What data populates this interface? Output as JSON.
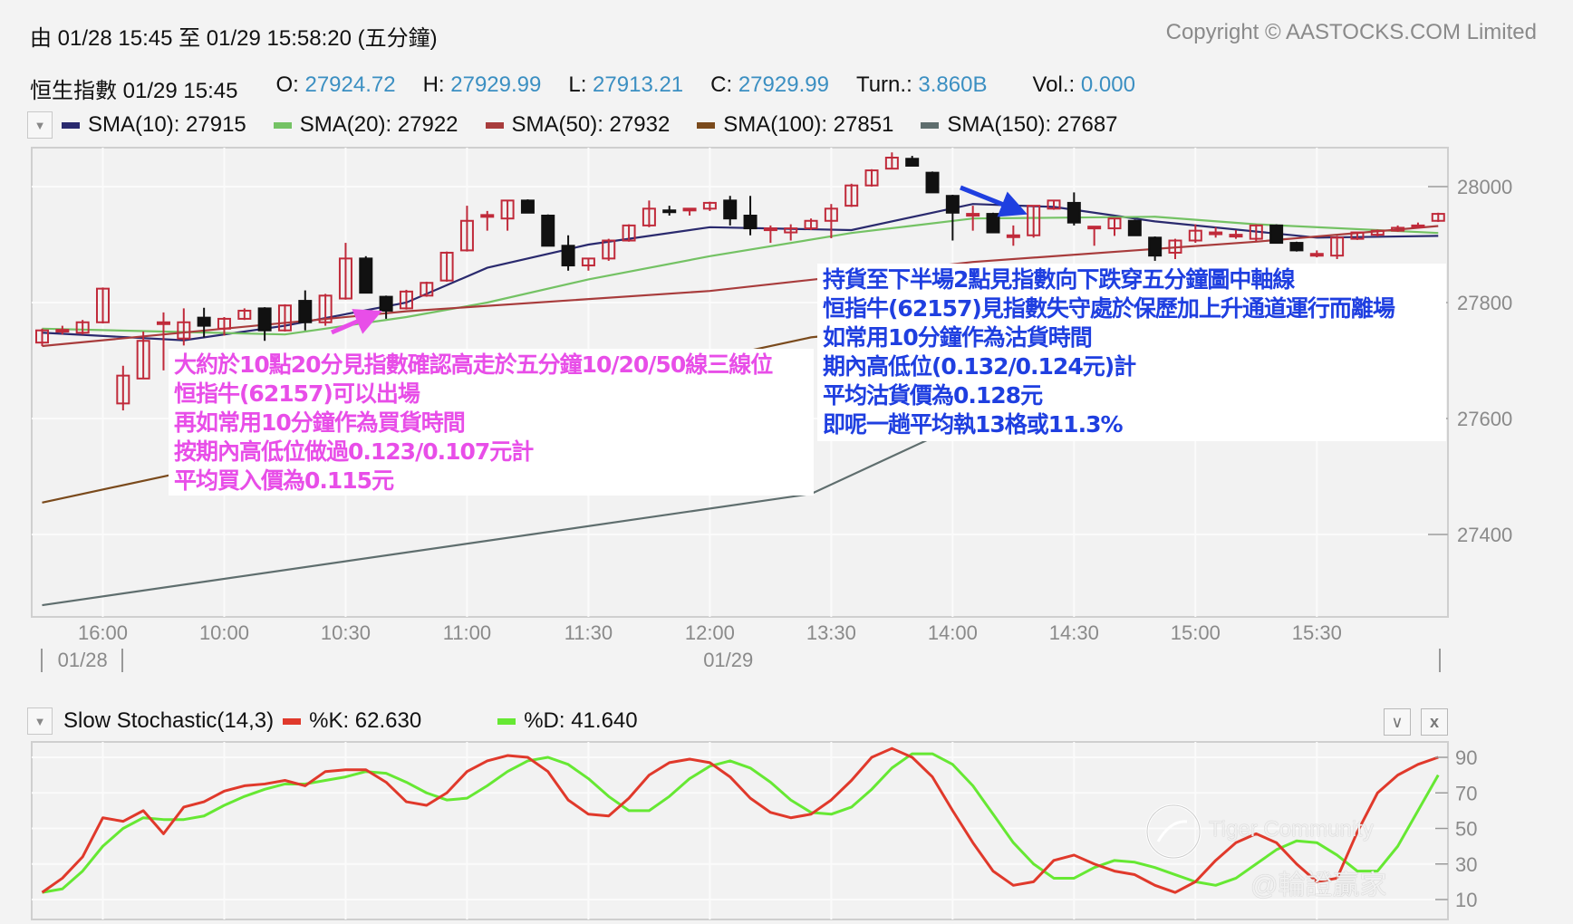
{
  "header": {
    "range_text": "由  01/28 15:45 至  01/29 15:58:20 (五分鐘)",
    "copyright": "Copyright © AASTOCKS.COM Limited"
  },
  "quote": {
    "name_time": "恒生指數 01/29 15:45",
    "fields": [
      {
        "label": "O:",
        "value": "27924.72"
      },
      {
        "label": "H:",
        "value": "27929.99"
      },
      {
        "label": "L:",
        "value": "27913.21"
      },
      {
        "label": "C:",
        "value": "27929.99"
      },
      {
        "label": "Turn.:",
        "value": "3.860B"
      },
      {
        "label": "Vol.:",
        "value": "0.000"
      }
    ],
    "value_color": "#3b8fc2"
  },
  "legend": {
    "dropdown_icon": "triangle-down-icon",
    "items": [
      {
        "label": "SMA(10): 27915",
        "color": "#2a2a6e"
      },
      {
        "label": "SMA(20): 27922",
        "color": "#74c264"
      },
      {
        "label": "SMA(50): 27932",
        "color": "#a83c3c"
      },
      {
        "label": "SMA(100): 27851",
        "color": "#7a4a1c"
      },
      {
        "label": "SMA(150): 27687",
        "color": "#5f6e6e"
      }
    ]
  },
  "annotations": {
    "buy": {
      "color": "#e84ee8",
      "lines": [
        "大約於10點20分見指數確認高走於五分鐘10/20/50線三線位",
        "恒指牛(62157)可以出場",
        "再如常用10分鐘作為買貨時間",
        "按期內高低位做過0.123/0.107元計",
        "平均買入價為0.115元"
      ]
    },
    "sell": {
      "color": "#1f3fe0",
      "lines": [
        "持貨至下半場2點見指數向下跌穿五分鐘圖中軸線",
        "恒指牛(62157)見指數失守處於保歷加上升通道運行而離場",
        "如常用10分鐘作為沽貨時間",
        "期內高低位(0.132/0.124元)計",
        "平均沽貨價為0.128元",
        "即呢一趟平均執13格或11.3%"
      ]
    }
  },
  "stoch_header": {
    "title": "Slow Stochastic(14,3)",
    "k_label": "%K: 62.630",
    "d_label": "%D: 41.640",
    "k_color": "#e0392b",
    "d_color": "#66e833",
    "collapse_icon": "chevron-down-icon",
    "close_icon": "close-icon",
    "close_label": "x"
  },
  "watermark": {
    "brand": "Tiger Community",
    "handle": "@輪證贏家"
  },
  "chart_data": [
    {
      "type": "candlestick",
      "title": "",
      "ylim": [
        27250,
        28090
      ],
      "y_ticks": [
        "28000",
        "27800",
        "27600",
        "27400"
      ],
      "y_tick_values": [
        28000,
        27800,
        27600,
        27400
      ],
      "x_ticks": [
        {
          "label": "16:00",
          "time": "01/28 16:00"
        },
        {
          "label": "10:00",
          "time": "01/29 10:00"
        },
        {
          "label": "10:30",
          "time": "01/29 10:30"
        },
        {
          "label": "11:00",
          "time": "01/29 11:00"
        },
        {
          "label": "11:30",
          "time": "01/29 11:30"
        },
        {
          "label": "12:00",
          "time": "01/29 12:00"
        },
        {
          "label": "13:30",
          "time": "01/29 13:30"
        },
        {
          "label": "14:00",
          "time": "01/29 14:00"
        },
        {
          "label": "14:30",
          "time": "01/29 14:30"
        },
        {
          "label": "15:00",
          "time": "01/29 15:00"
        },
        {
          "label": "15:30",
          "time": "01/29 15:30"
        }
      ],
      "date_labels": [
        {
          "label": "01/28",
          "time": "01/28 15:55"
        },
        {
          "label": "01/29",
          "time": "01/29 13:05"
        }
      ],
      "grid": true,
      "up_color": "#c02a3a",
      "down_color": "#111111",
      "candles_ohlc": [
        [
          "01/28 15:45",
          27731,
          27755,
          27725,
          27752
        ],
        [
          "01/28 15:50",
          27752,
          27760,
          27745,
          27753
        ],
        [
          "01/28 15:55",
          27748,
          27770,
          27745,
          27766
        ],
        [
          "01/28 16:00",
          27766,
          27826,
          27764,
          27824
        ],
        [
          "01/29 09:35",
          27626,
          27691,
          27614,
          27674
        ],
        [
          "01/29 09:40",
          27669,
          27750,
          27669,
          27734
        ],
        [
          "01/29 09:45",
          27765,
          27783,
          27683,
          27766
        ],
        [
          "01/29 09:50",
          27738,
          27790,
          27726,
          27766
        ],
        [
          "01/29 09:55",
          27774,
          27791,
          27740,
          27760
        ],
        [
          "01/29 10:00",
          27755,
          27775,
          27743,
          27772
        ],
        [
          "01/29 10:05",
          27772,
          27790,
          27770,
          27786
        ],
        [
          "01/29 10:10",
          27790,
          27792,
          27734,
          27752
        ],
        [
          "01/29 10:15",
          27752,
          27797,
          27750,
          27795
        ],
        [
          "01/29 10:20",
          27803,
          27821,
          27752,
          27766
        ],
        [
          "01/29 10:25",
          27766,
          27815,
          27760,
          27812
        ],
        [
          "01/29 10:30",
          27807,
          27903,
          27805,
          27876
        ],
        [
          "01/29 10:35",
          27876,
          27880,
          27817,
          27817
        ],
        [
          "01/29 10:40",
          27810,
          27812,
          27772,
          27786
        ],
        [
          "01/29 10:45",
          27790,
          27822,
          27788,
          27819
        ],
        [
          "01/29 10:50",
          27812,
          27836,
          27810,
          27834
        ],
        [
          "01/29 10:55",
          27838,
          27888,
          27836,
          27886
        ],
        [
          "01/29 11:00",
          27890,
          27967,
          27888,
          27941
        ],
        [
          "01/29 11:05",
          27950,
          27958,
          27924,
          27951
        ],
        [
          "01/29 11:10",
          27945,
          27976,
          27924,
          27976
        ],
        [
          "01/29 11:15",
          27976,
          27978,
          27955,
          27955
        ],
        [
          "01/29 11:20",
          27950,
          27952,
          27898,
          27898
        ],
        [
          "01/29 11:25",
          27898,
          27916,
          27855,
          27864
        ],
        [
          "01/29 11:30",
          27864,
          27876,
          27855,
          27876
        ],
        [
          "01/29 11:35",
          27876,
          27910,
          27872,
          27907
        ],
        [
          "01/29 11:40",
          27907,
          27935,
          27905,
          27933
        ],
        [
          "01/29 11:45",
          27933,
          27976,
          27930,
          27962
        ],
        [
          "01/29 11:50",
          27959,
          27967,
          27950,
          27958
        ],
        [
          "01/29 11:55",
          27959,
          27962,
          27950,
          27962
        ],
        [
          "01/29 12:00",
          27962,
          27974,
          27958,
          27972
        ],
        [
          "01/29 13:05",
          27976,
          27984,
          27933,
          27945
        ],
        [
          "01/29 13:10",
          27950,
          27984,
          27916,
          27928
        ],
        [
          "01/29 13:15",
          27928,
          27933,
          27903,
          27928
        ],
        [
          "01/29 13:20",
          27921,
          27935,
          27907,
          27928
        ],
        [
          "01/29 13:25",
          27928,
          27945,
          27925,
          27941
        ],
        [
          "01/29 13:30",
          27941,
          27970,
          27911,
          27962
        ],
        [
          "01/29 13:35",
          27967,
          28005,
          27965,
          28002
        ],
        [
          "01/29 13:40",
          28002,
          28030,
          28000,
          28028
        ],
        [
          "01/29 13:45",
          28031,
          28059,
          28030,
          28050
        ],
        [
          "01/29 13:50",
          28048,
          28053,
          28036,
          28036
        ],
        [
          "01/29 13:55",
          28024,
          28026,
          27990,
          27990
        ],
        [
          "01/29 14:00",
          27984,
          27986,
          27907,
          27955
        ],
        [
          "01/29 14:05",
          27953,
          27967,
          27924,
          27953
        ],
        [
          "01/29 14:10",
          27953,
          27955,
          27921,
          27921
        ],
        [
          "01/29 14:15",
          27916,
          27933,
          27898,
          27916
        ],
        [
          "01/29 14:20",
          27916,
          27966,
          27912,
          27967
        ],
        [
          "01/29 14:25",
          27962,
          27976,
          27960,
          27976
        ],
        [
          "01/29 14:30",
          27972,
          27990,
          27933,
          27938
        ],
        [
          "01/29 14:35",
          27928,
          27931,
          27898,
          27931
        ],
        [
          "01/29 14:40",
          27928,
          27945,
          27915,
          27945
        ],
        [
          "01/29 14:45",
          27941,
          27943,
          27916,
          27916
        ],
        [
          "01/29 14:50",
          27912,
          27914,
          27872,
          27881
        ],
        [
          "01/29 14:55",
          27886,
          27910,
          27875,
          27907
        ],
        [
          "01/29 15:00",
          27907,
          27935,
          27903,
          27924
        ],
        [
          "01/29 15:05",
          27921,
          27930,
          27912,
          27921
        ],
        [
          "01/29 15:10",
          27917,
          27925,
          27910,
          27917
        ],
        [
          "01/29 15:15",
          27910,
          27935,
          27905,
          27933
        ],
        [
          "01/29 15:20",
          27933,
          27935,
          27903,
          27903
        ],
        [
          "01/29 15:25",
          27903,
          27905,
          27888,
          27890
        ],
        [
          "01/29 15:30",
          27884,
          27890,
          27878,
          27884
        ],
        [
          "01/29 15:35",
          27881,
          27915,
          27875,
          27912
        ],
        [
          "01/29 15:40",
          27910,
          27922,
          27908,
          27921
        ],
        [
          "01/29 15:45",
          27917,
          27926,
          27914,
          27924
        ],
        [
          "01/29 15:50",
          27924,
          27933,
          27922,
          27929
        ],
        [
          "01/29 15:55",
          27931,
          27938,
          27928,
          27933
        ],
        [
          "01/29 16:00",
          27941,
          27955,
          27939,
          27953
        ]
      ],
      "series": [
        {
          "name": "SMA(10)",
          "color": "#2a2a6e",
          "points": [
            [
              "01/28 15:45",
              27748
            ],
            [
              "01/29 09:50",
              27735
            ],
            [
              "01/29 10:15",
              27760
            ],
            [
              "01/29 10:45",
              27800
            ],
            [
              "01/29 11:05",
              27860
            ],
            [
              "01/29 11:30",
              27900
            ],
            [
              "01/29 12:00",
              27930
            ],
            [
              "01/29 13:35",
              27925
            ],
            [
              "01/29 14:05",
              27970
            ],
            [
              "01/29 14:25",
              27965
            ],
            [
              "01/29 14:50",
              27940
            ],
            [
              "01/29 15:30",
              27912
            ],
            [
              "01/29 16:00",
              27915
            ]
          ]
        },
        {
          "name": "SMA(20)",
          "color": "#74c264",
          "points": [
            [
              "01/28 15:45",
              27755
            ],
            [
              "01/29 10:15",
              27745
            ],
            [
              "01/29 10:45",
              27775
            ],
            [
              "01/29 11:05",
              27800
            ],
            [
              "01/29 11:30",
              27840
            ],
            [
              "01/29 12:00",
              27880
            ],
            [
              "01/29 13:35",
              27920
            ],
            [
              "01/29 14:05",
              27945
            ],
            [
              "01/29 14:50",
              27948
            ],
            [
              "01/29 15:15",
              27935
            ],
            [
              "01/29 16:00",
              27920
            ]
          ]
        },
        {
          "name": "SMA(50)",
          "color": "#a83c3c",
          "points": [
            [
              "01/28 15:45",
              27725
            ],
            [
              "01/29 10:45",
              27785
            ],
            [
              "01/29 12:00",
              27820
            ],
            [
              "01/29 14:05",
              27870
            ],
            [
              "01/29 15:15",
              27905
            ],
            [
              "01/29 16:00",
              27932
            ]
          ]
        },
        {
          "name": "SMA(100)",
          "color": "#7a4a1c",
          "points": [
            [
              "01/28 15:45",
              27455
            ],
            [
              "01/29 13:25",
              27740
            ],
            [
              "01/29 16:00",
              27851
            ]
          ]
        },
        {
          "name": "SMA(150)",
          "color": "#5f6e6e",
          "points": [
            [
              "01/28 15:45",
              27278
            ],
            [
              "01/29 13:25",
              27470
            ],
            [
              "01/29 13:55",
              27567
            ],
            [
              "01/29 16:00",
              27687
            ]
          ]
        }
      ]
    },
    {
      "type": "line",
      "title": "Slow Stochastic(14,3)",
      "ylim": [
        0,
        98
      ],
      "y_ticks": [
        "90",
        "70",
        "50",
        "30",
        "10"
      ],
      "y_tick_values": [
        90,
        70,
        50,
        30,
        10
      ],
      "grid": true,
      "x_aligned_with": "candles_ohlc",
      "series": [
        {
          "name": "%K",
          "color": "#e0392b",
          "values": [
            14,
            22,
            34,
            56,
            54,
            60,
            47,
            62,
            65,
            71,
            74,
            75,
            77,
            74,
            82,
            83,
            83,
            76,
            65,
            63,
            70,
            82,
            88,
            91,
            90,
            82,
            66,
            58,
            57,
            67,
            80,
            87,
            89,
            87,
            79,
            67,
            59,
            56,
            58,
            66,
            77,
            90,
            95,
            90,
            79,
            60,
            42,
            26,
            18,
            20,
            32,
            35,
            30,
            26,
            24,
            18,
            14,
            20,
            32,
            42,
            47,
            42,
            30,
            20,
            22,
            48,
            70,
            80,
            86,
            90
          ]
        },
        {
          "name": "%D",
          "color": "#66e833",
          "values": [
            14,
            16,
            26,
            40,
            50,
            56,
            55,
            55,
            57,
            63,
            68,
            72,
            75,
            75,
            77,
            79,
            82,
            81,
            76,
            70,
            66,
            67,
            74,
            82,
            88,
            90,
            86,
            78,
            68,
            60,
            60,
            68,
            78,
            85,
            88,
            84,
            76,
            66,
            59,
            58,
            62,
            72,
            84,
            92,
            92,
            86,
            74,
            58,
            42,
            30,
            22,
            22,
            28,
            32,
            31,
            28,
            24,
            20,
            18,
            22,
            30,
            38,
            43,
            42,
            35,
            26,
            26,
            40,
            60,
            80
          ]
        }
      ]
    }
  ]
}
